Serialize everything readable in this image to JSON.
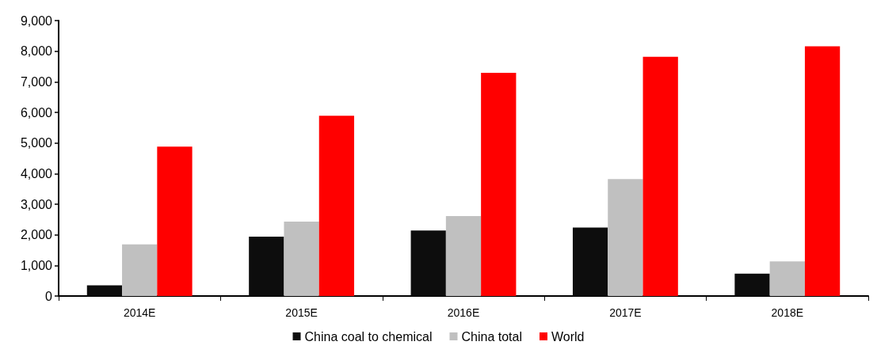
{
  "chart_data": {
    "type": "bar",
    "categories": [
      "2014E",
      "2015E",
      "2016E",
      "2017E",
      "2018E"
    ],
    "series": [
      {
        "name": "China coal to chemical",
        "color": "#0d0d0d",
        "values": [
          350,
          1940,
          2140,
          2240,
          730
        ]
      },
      {
        "name": "China total",
        "color": "#c0c0c0",
        "values": [
          1690,
          2430,
          2610,
          3820,
          1130
        ]
      },
      {
        "name": "World",
        "color": "#ff0000",
        "values": [
          4880,
          5890,
          7290,
          7820,
          8160
        ]
      }
    ],
    "ylim": [
      0,
      9000
    ],
    "yticks": [
      0,
      {
        "value": 1000,
        "label": "1,000"
      },
      {
        "value": 2000,
        "label": "2,000"
      },
      {
        "value": 3000,
        "label": "3,000"
      },
      {
        "value": 4000,
        "label": "4,000"
      },
      {
        "value": 5000,
        "label": "5,000"
      },
      {
        "value": 6000,
        "label": "6,000"
      },
      {
        "value": 7000,
        "label": "7,000"
      },
      {
        "value": 8000,
        "label": "8,000"
      },
      {
        "value": 9000,
        "label": "9,000"
      }
    ],
    "grid": false,
    "legend": "bottom"
  }
}
